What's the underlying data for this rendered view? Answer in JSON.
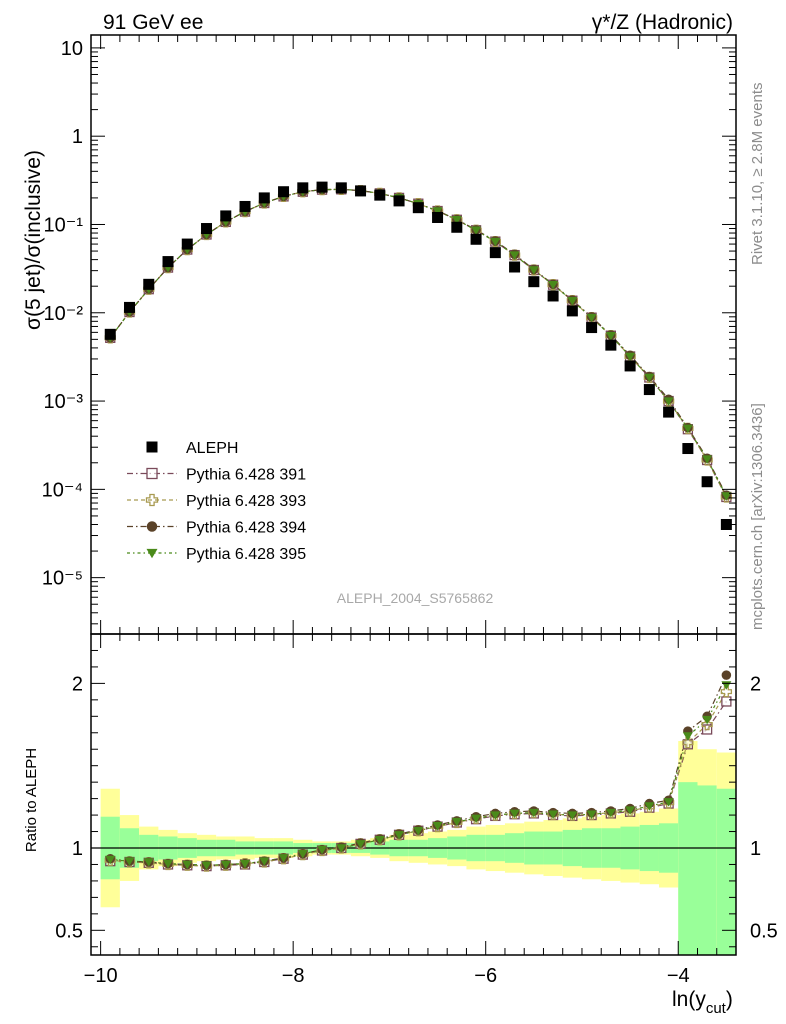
{
  "header": {
    "left": "91 GeV ee",
    "right": "γ*/Z (Hadronic)"
  },
  "side_labels": {
    "rivet": "Rivet 3.1.10, ≥ 2.8M events",
    "mcplots": "mcplots.cern.ch [arXiv:1306.3436]"
  },
  "watermark": "ALEPH_2004_S5765862",
  "chart_data": [
    {
      "type": "scatter",
      "panel": "main",
      "ylabel": "σ(5 jet)/σ(inclusive)",
      "yscale": "log",
      "ylim": [
        2.3e-06,
        14
      ],
      "xlim": [
        -10.1,
        -3.4
      ],
      "ytick_labels": [
        "10⁻⁵",
        "10⁻⁴",
        "10⁻³",
        "10⁻²",
        "10⁻¹",
        "1",
        "10"
      ],
      "legend_position": "lower-left",
      "x": [
        -9.9,
        -9.7,
        -9.5,
        -9.3,
        -9.1,
        -8.9,
        -8.7,
        -8.5,
        -8.3,
        -8.1,
        -7.9,
        -7.7,
        -7.5,
        -7.3,
        -7.1,
        -6.9,
        -6.7,
        -6.5,
        -6.3,
        -6.1,
        -5.9,
        -5.7,
        -5.5,
        -5.3,
        -5.1,
        -4.9,
        -4.7,
        -4.5,
        -4.3,
        -4.1,
        -3.9,
        -3.7,
        -3.5
      ],
      "series": [
        {
          "name": "ALEPH",
          "marker": "square",
          "color": "#000000",
          "values": [
            0.0057,
            0.0115,
            0.021,
            0.038,
            0.06,
            0.09,
            0.125,
            0.16,
            0.2,
            0.235,
            0.26,
            0.265,
            0.26,
            0.24,
            0.215,
            0.185,
            0.155,
            0.12,
            0.093,
            0.068,
            0.048,
            0.033,
            0.0225,
            0.0155,
            0.0105,
            0.0068,
            0.0043,
            0.0025,
            0.00135,
            0.00075,
            0.00029,
            0.000122,
            4e-05
          ]
        },
        {
          "name": "Pythia 6.428 391",
          "marker": "open-square",
          "color": "#7a4a5a",
          "values": [
            0.0052,
            0.0102,
            0.0185,
            0.0325,
            0.052,
            0.077,
            0.107,
            0.14,
            0.175,
            0.208,
            0.235,
            0.248,
            0.25,
            0.242,
            0.225,
            0.2,
            0.172,
            0.142,
            0.113,
            0.086,
            0.064,
            0.045,
            0.0305,
            0.0208,
            0.0137,
            0.0088,
            0.0055,
            0.0032,
            0.00185,
            0.001,
            0.00048,
            0.000215,
            8.2e-05
          ]
        },
        {
          "name": "Pythia 6.428 393",
          "marker": "open-cross",
          "color": "#a89a50",
          "values": [
            0.0052,
            0.0102,
            0.0185,
            0.0325,
            0.052,
            0.077,
            0.107,
            0.14,
            0.175,
            0.208,
            0.235,
            0.248,
            0.25,
            0.242,
            0.225,
            0.2,
            0.172,
            0.142,
            0.113,
            0.086,
            0.064,
            0.045,
            0.0305,
            0.0208,
            0.0137,
            0.0088,
            0.0055,
            0.0032,
            0.00185,
            0.001,
            0.00049,
            0.000215,
            8.2e-05
          ]
        },
        {
          "name": "Pythia 6.428 394",
          "marker": "circle",
          "color": "#5a4228",
          "values": [
            0.0052,
            0.0102,
            0.0185,
            0.0325,
            0.052,
            0.077,
            0.107,
            0.14,
            0.175,
            0.208,
            0.235,
            0.248,
            0.25,
            0.242,
            0.225,
            0.2,
            0.172,
            0.143,
            0.114,
            0.087,
            0.065,
            0.046,
            0.031,
            0.021,
            0.0139,
            0.009,
            0.0056,
            0.0033,
            0.0019,
            0.00105,
            0.0005,
            0.000225,
            8.6e-05
          ]
        },
        {
          "name": "Pythia 6.428 395",
          "marker": "triangle-down",
          "color": "#4a8a1a",
          "values": [
            0.0052,
            0.0102,
            0.0185,
            0.0325,
            0.052,
            0.077,
            0.107,
            0.14,
            0.175,
            0.208,
            0.235,
            0.248,
            0.25,
            0.242,
            0.225,
            0.2,
            0.172,
            0.142,
            0.113,
            0.086,
            0.064,
            0.045,
            0.0305,
            0.0208,
            0.0137,
            0.0088,
            0.0055,
            0.0032,
            0.00185,
            0.001,
            0.00049,
            0.00022,
            8.4e-05
          ]
        }
      ]
    },
    {
      "type": "scatter",
      "panel": "ratio",
      "xlabel": "ln(y_cut)",
      "xlabel_main": "ln(y",
      "xlabel_sub": "cut",
      "xlabel_close": ")",
      "ylabel": "Ratio to ALEPH",
      "ylim": [
        0.35,
        2.3
      ],
      "xlim": [
        -10.1,
        -3.4
      ],
      "xticks": [
        -10,
        -8,
        -6,
        -4
      ],
      "xtick_labels": [
        "−10",
        "−8",
        "−6",
        "−4"
      ],
      "yticks": [
        0.5,
        1,
        2
      ],
      "ytick_labels": [
        "0.5",
        "1",
        "2"
      ],
      "bands": {
        "edges": [
          -10.0,
          -9.8,
          -9.6,
          -9.4,
          -9.2,
          -9.0,
          -8.8,
          -8.6,
          -8.4,
          -8.2,
          -8.0,
          -7.8,
          -7.6,
          -7.4,
          -7.2,
          -7.0,
          -6.8,
          -6.6,
          -6.4,
          -6.2,
          -6.0,
          -5.8,
          -5.6,
          -5.4,
          -5.2,
          -5.0,
          -4.8,
          -4.6,
          -4.4,
          -4.2,
          -4.0,
          -3.8,
          -3.6,
          -3.4
        ],
        "yellow_hi": [
          1.36,
          1.2,
          1.13,
          1.11,
          1.09,
          1.08,
          1.07,
          1.07,
          1.06,
          1.06,
          1.05,
          1.04,
          1.04,
          1.05,
          1.06,
          1.08,
          1.09,
          1.1,
          1.11,
          1.13,
          1.14,
          1.15,
          1.16,
          1.17,
          1.18,
          1.19,
          1.2,
          1.21,
          1.22,
          1.24,
          1.65,
          1.6,
          1.58
        ],
        "green_hi": [
          1.19,
          1.12,
          1.08,
          1.07,
          1.06,
          1.05,
          1.05,
          1.04,
          1.04,
          1.04,
          1.03,
          1.03,
          1.03,
          1.03,
          1.04,
          1.05,
          1.05,
          1.06,
          1.07,
          1.08,
          1.08,
          1.09,
          1.1,
          1.1,
          1.11,
          1.12,
          1.12,
          1.13,
          1.14,
          1.15,
          1.4,
          1.38,
          1.36
        ],
        "green_lo": [
          0.81,
          0.88,
          0.92,
          0.93,
          0.94,
          0.95,
          0.95,
          0.96,
          0.96,
          0.96,
          0.97,
          0.97,
          0.97,
          0.97,
          0.96,
          0.95,
          0.95,
          0.94,
          0.93,
          0.92,
          0.92,
          0.91,
          0.9,
          0.9,
          0.89,
          0.88,
          0.88,
          0.87,
          0.86,
          0.85,
          0.35,
          0.35,
          0.35
        ],
        "yellow_lo": [
          0.64,
          0.8,
          0.87,
          0.89,
          0.91,
          0.92,
          0.93,
          0.93,
          0.94,
          0.94,
          0.95,
          0.96,
          0.96,
          0.95,
          0.94,
          0.92,
          0.91,
          0.9,
          0.89,
          0.87,
          0.86,
          0.85,
          0.84,
          0.83,
          0.82,
          0.81,
          0.8,
          0.79,
          0.78,
          0.76,
          0.35,
          0.35,
          0.35
        ]
      },
      "x": [
        -9.9,
        -9.7,
        -9.5,
        -9.3,
        -9.1,
        -8.9,
        -8.7,
        -8.5,
        -8.3,
        -8.1,
        -7.9,
        -7.7,
        -7.5,
        -7.3,
        -7.1,
        -6.9,
        -6.7,
        -6.5,
        -6.3,
        -6.1,
        -5.9,
        -5.7,
        -5.5,
        -5.3,
        -5.1,
        -4.9,
        -4.7,
        -4.5,
        -4.3,
        -4.1,
        -3.9,
        -3.7,
        -3.5
      ],
      "series": [
        {
          "name": "Pythia 6.428 391",
          "values": [
            0.92,
            0.915,
            0.91,
            0.9,
            0.895,
            0.89,
            0.895,
            0.9,
            0.915,
            0.935,
            0.96,
            0.985,
            1.0,
            1.025,
            1.05,
            1.08,
            1.105,
            1.13,
            1.155,
            1.175,
            1.195,
            1.205,
            1.21,
            1.2,
            1.195,
            1.2,
            1.21,
            1.22,
            1.245,
            1.27,
            1.63,
            1.72,
            1.89
          ]
        },
        {
          "name": "Pythia 6.428 393",
          "values": [
            0.925,
            0.915,
            0.91,
            0.9,
            0.895,
            0.89,
            0.895,
            0.905,
            0.915,
            0.935,
            0.96,
            0.985,
            1.0,
            1.025,
            1.05,
            1.08,
            1.105,
            1.13,
            1.155,
            1.18,
            1.2,
            1.21,
            1.215,
            1.205,
            1.2,
            1.205,
            1.215,
            1.225,
            1.25,
            1.275,
            1.64,
            1.75,
            1.95
          ]
        },
        {
          "name": "Pythia 6.428 394",
          "values": [
            0.935,
            0.92,
            0.915,
            0.905,
            0.9,
            0.895,
            0.9,
            0.905,
            0.92,
            0.94,
            0.965,
            0.99,
            1.005,
            1.03,
            1.055,
            1.085,
            1.11,
            1.14,
            1.165,
            1.19,
            1.21,
            1.22,
            1.225,
            1.215,
            1.21,
            1.215,
            1.225,
            1.24,
            1.27,
            1.29,
            1.71,
            1.8,
            2.05
          ]
        },
        {
          "name": "Pythia 6.428 395",
          "values": [
            0.93,
            0.92,
            0.915,
            0.905,
            0.9,
            0.895,
            0.9,
            0.905,
            0.92,
            0.94,
            0.965,
            0.99,
            1.0,
            1.025,
            1.05,
            1.08,
            1.105,
            1.135,
            1.16,
            1.18,
            1.2,
            1.21,
            1.215,
            1.205,
            1.2,
            1.205,
            1.215,
            1.23,
            1.255,
            1.28,
            1.68,
            1.78,
            1.99
          ]
        }
      ]
    }
  ]
}
